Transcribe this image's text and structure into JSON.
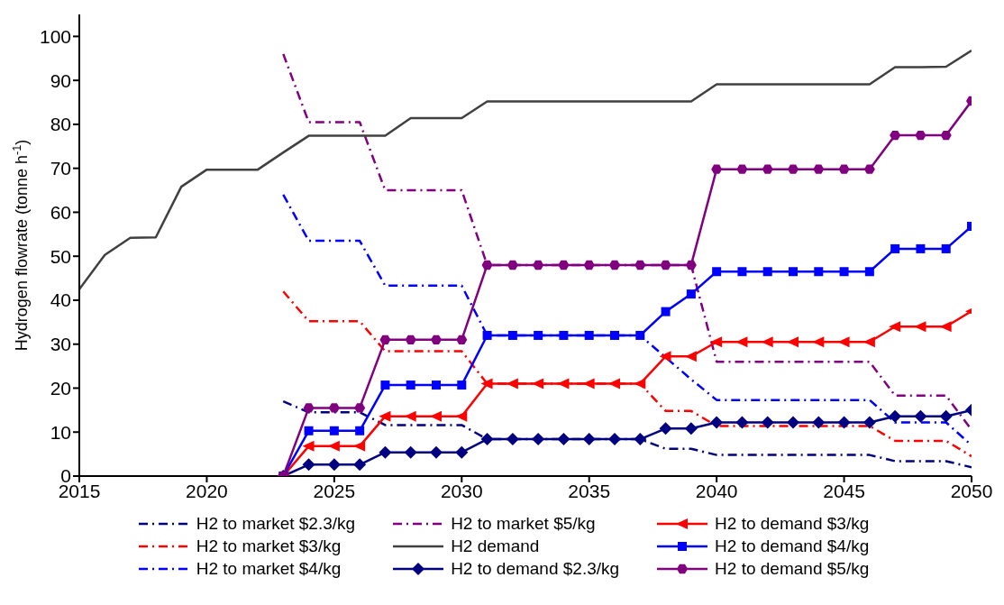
{
  "chart_data": {
    "type": "line",
    "ylabel": "Hydrogen flowrate (tonne h$^{-1}$)",
    "xlim": [
      2015,
      2050
    ],
    "xticks": [
      2015,
      2020,
      2025,
      2030,
      2035,
      2040,
      2045,
      2050
    ],
    "ylim": [
      0,
      105
    ],
    "yticks": [
      0,
      10,
      20,
      30,
      40,
      50,
      60,
      70,
      80,
      90,
      100
    ],
    "grid": false,
    "legend": "bottom",
    "series": [
      {
        "name": "H2 to market $2.3/kg",
        "color": "#000080",
        "line_style": "dashed",
        "marker": "none",
        "x": [
          2023,
          2024,
          2025,
          2026,
          2027,
          2028,
          2029,
          2030,
          2031,
          2032,
          2033,
          2034,
          2035,
          2036,
          2037,
          2038,
          2039,
          2040,
          2041,
          2042,
          2043,
          2044,
          2045,
          2046,
          2047,
          2048,
          2049,
          2050
        ],
        "values": [
          17,
          14.5,
          14.5,
          14.5,
          11.6,
          11.6,
          11.6,
          11.6,
          8.4,
          8.4,
          8.4,
          8.4,
          8.4,
          8.4,
          8.4,
          6.2,
          6.2,
          4.8,
          4.8,
          4.8,
          4.8,
          4.8,
          4.8,
          4.8,
          3.4,
          3.4,
          3.4,
          2
        ]
      },
      {
        "name": "H2 to market $3/kg",
        "color": "#ff0000",
        "line_style": "dashed",
        "marker": "none",
        "x": [
          2023,
          2024,
          2025,
          2026,
          2027,
          2028,
          2029,
          2030,
          2031,
          2032,
          2033,
          2034,
          2035,
          2036,
          2037,
          2038,
          2039,
          2040,
          2041,
          2042,
          2043,
          2044,
          2045,
          2046,
          2047,
          2048,
          2049,
          2050
        ],
        "values": [
          42,
          35.2,
          35.2,
          35.2,
          28.4,
          28.4,
          28.4,
          28.4,
          21,
          21,
          21,
          21,
          21,
          21,
          21,
          14.8,
          14.8,
          11.4,
          11.4,
          11.4,
          11.4,
          11.4,
          11.4,
          11.4,
          8,
          8,
          8,
          4.5
        ]
      },
      {
        "name": "H2 to market $4/kg",
        "color": "#0000ff",
        "line_style": "dashed",
        "marker": "none",
        "x": [
          2023,
          2024,
          2025,
          2026,
          2027,
          2028,
          2029,
          2030,
          2031,
          2032,
          2033,
          2034,
          2035,
          2036,
          2037,
          2038,
          2039,
          2040,
          2041,
          2042,
          2043,
          2044,
          2045,
          2046,
          2047,
          2048,
          2049,
          2050
        ],
        "values": [
          64,
          53.5,
          53.5,
          53.5,
          43.3,
          43.3,
          43.3,
          43.3,
          32,
          32,
          32,
          32,
          32,
          32,
          32,
          27,
          22,
          17.3,
          17.3,
          17.3,
          17.3,
          17.3,
          17.3,
          17.3,
          12.2,
          12.2,
          12.2,
          7
        ]
      },
      {
        "name": "H2 to market $5/kg",
        "color": "#800080",
        "line_style": "dashed",
        "marker": "none",
        "x": [
          2023,
          2024,
          2025,
          2026,
          2027,
          2028,
          2029,
          2030,
          2031,
          2032,
          2033,
          2034,
          2035,
          2036,
          2037,
          2038,
          2039,
          2040,
          2041,
          2042,
          2043,
          2044,
          2045,
          2046,
          2047,
          2048,
          2049,
          2050
        ],
        "values": [
          96,
          80.5,
          80.5,
          80.5,
          65,
          65,
          65,
          65,
          48,
          48,
          48,
          48,
          48,
          48,
          48,
          48,
          48,
          26,
          26,
          26,
          26,
          26,
          26,
          26,
          18.3,
          18.3,
          18.3,
          10.5
        ]
      },
      {
        "name": "H2 demand",
        "color": "#404040",
        "line_style": "solid",
        "marker": "none",
        "x": [
          2015,
          2016,
          2017,
          2018,
          2019,
          2020,
          2021,
          2022,
          2023,
          2024,
          2025,
          2026,
          2027,
          2028,
          2029,
          2030,
          2031,
          2032,
          2033,
          2034,
          2035,
          2036,
          2037,
          2038,
          2039,
          2040,
          2041,
          2042,
          2043,
          2044,
          2045,
          2046,
          2047,
          2048,
          2049,
          2050
        ],
        "values": [
          42.5,
          50.3,
          54.2,
          54.3,
          65.8,
          69.7,
          69.7,
          69.7,
          73.6,
          77.4,
          77.4,
          77.4,
          77.4,
          81.4,
          81.4,
          81.4,
          85.2,
          85.2,
          85.2,
          85.2,
          85.2,
          85.2,
          85.2,
          85.2,
          85.2,
          89.1,
          89.1,
          89.1,
          89.1,
          89.1,
          89.1,
          89.1,
          93,
          93,
          93.1,
          96.8
        ]
      },
      {
        "name": "H2 to demand $2.3/kg",
        "color": "#000080",
        "line_style": "solid",
        "marker": "diamond",
        "x": [
          2023,
          2024,
          2025,
          2026,
          2027,
          2028,
          2029,
          2030,
          2031,
          2032,
          2033,
          2034,
          2035,
          2036,
          2037,
          2038,
          2039,
          2040,
          2041,
          2042,
          2043,
          2044,
          2045,
          2046,
          2047,
          2048,
          2049,
          2050
        ],
        "values": [
          0,
          2.6,
          2.6,
          2.6,
          5.4,
          5.4,
          5.4,
          5.4,
          8.4,
          8.4,
          8.4,
          8.4,
          8.4,
          8.4,
          8.4,
          10.8,
          10.8,
          12.2,
          12.2,
          12.2,
          12.2,
          12.2,
          12.2,
          12.2,
          13.6,
          13.6,
          13.6,
          15
        ]
      },
      {
        "name": "H2 to demand $3/kg",
        "color": "#ff0000",
        "line_style": "solid",
        "marker": "triangle",
        "x": [
          2023,
          2024,
          2025,
          2026,
          2027,
          2028,
          2029,
          2030,
          2031,
          2032,
          2033,
          2034,
          2035,
          2036,
          2037,
          2038,
          2039,
          2040,
          2041,
          2042,
          2043,
          2044,
          2045,
          2046,
          2047,
          2048,
          2049,
          2050
        ],
        "values": [
          0,
          6.8,
          6.8,
          6.8,
          13.6,
          13.6,
          13.6,
          13.6,
          21,
          21,
          21,
          21,
          21,
          21,
          21,
          27.2,
          27.2,
          30.5,
          30.5,
          30.5,
          30.5,
          30.5,
          30.5,
          30.5,
          34,
          34,
          34,
          37.5
        ]
      },
      {
        "name": "H2 to demand $4/kg",
        "color": "#0000ff",
        "line_style": "solid",
        "marker": "square",
        "x": [
          2023,
          2024,
          2025,
          2026,
          2027,
          2028,
          2029,
          2030,
          2031,
          2032,
          2033,
          2034,
          2035,
          2036,
          2037,
          2038,
          2039,
          2040,
          2041,
          2042,
          2043,
          2044,
          2045,
          2046,
          2047,
          2048,
          2049,
          2050
        ],
        "values": [
          0,
          10.3,
          10.3,
          10.3,
          20.7,
          20.7,
          20.7,
          20.7,
          32,
          32,
          32,
          32,
          32,
          32,
          32,
          37.4,
          41.4,
          46.5,
          46.5,
          46.5,
          46.5,
          46.5,
          46.5,
          46.5,
          51.7,
          51.7,
          51.7,
          56.8
        ]
      },
      {
        "name": "H2 to demand $5/kg",
        "color": "#800080",
        "line_style": "solid",
        "marker": "circle",
        "x": [
          2023,
          2024,
          2025,
          2026,
          2027,
          2028,
          2029,
          2030,
          2031,
          2032,
          2033,
          2034,
          2035,
          2036,
          2037,
          2038,
          2039,
          2040,
          2041,
          2042,
          2043,
          2044,
          2045,
          2046,
          2047,
          2048,
          2049,
          2050
        ],
        "values": [
          0,
          15.5,
          15.5,
          15.5,
          31,
          31,
          31,
          31,
          48,
          48,
          48,
          48,
          48,
          48,
          48,
          48,
          48,
          69.8,
          69.8,
          69.8,
          69.8,
          69.8,
          69.8,
          69.8,
          77.5,
          77.5,
          77.5,
          85.3
        ]
      }
    ]
  }
}
